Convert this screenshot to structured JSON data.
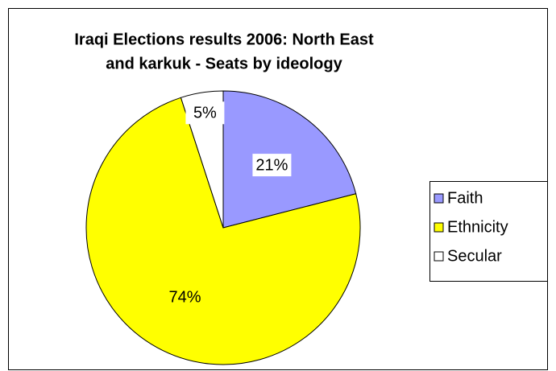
{
  "chart_data": {
    "type": "pie",
    "title": [
      "Iraqi Elections results 2006:  North East",
      "and karkuk - Seats by ideology"
    ],
    "categories": [
      "Faith",
      "Ethnicity",
      "Secular"
    ],
    "values": [
      21,
      74,
      5
    ],
    "value_labels": [
      "21%",
      "74%",
      "5%"
    ],
    "colors": [
      "#9999ff",
      "#ffff00",
      "#ffffff"
    ],
    "legend": "right"
  }
}
